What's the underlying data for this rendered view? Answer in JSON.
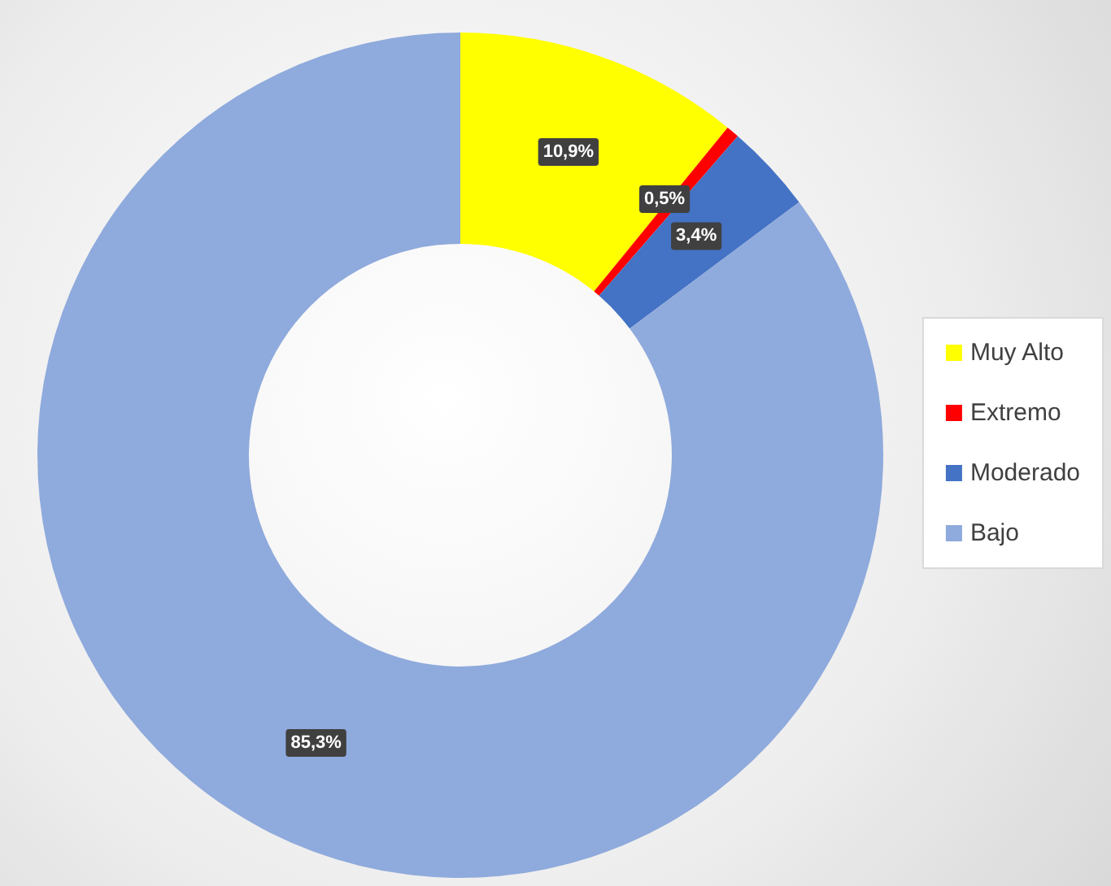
{
  "chart_data": {
    "type": "donut",
    "categories": [
      "Muy Alto",
      "Extremo",
      "Moderado",
      "Bajo"
    ],
    "values": [
      10.9,
      0.5,
      3.4,
      85.3
    ],
    "colors": [
      "#ffff00",
      "#ff0000",
      "#4472c4",
      "#8faadc"
    ],
    "value_labels": [
      "10,9%",
      "0,5%",
      "3,4%",
      "85,3%"
    ],
    "legend": "right"
  }
}
